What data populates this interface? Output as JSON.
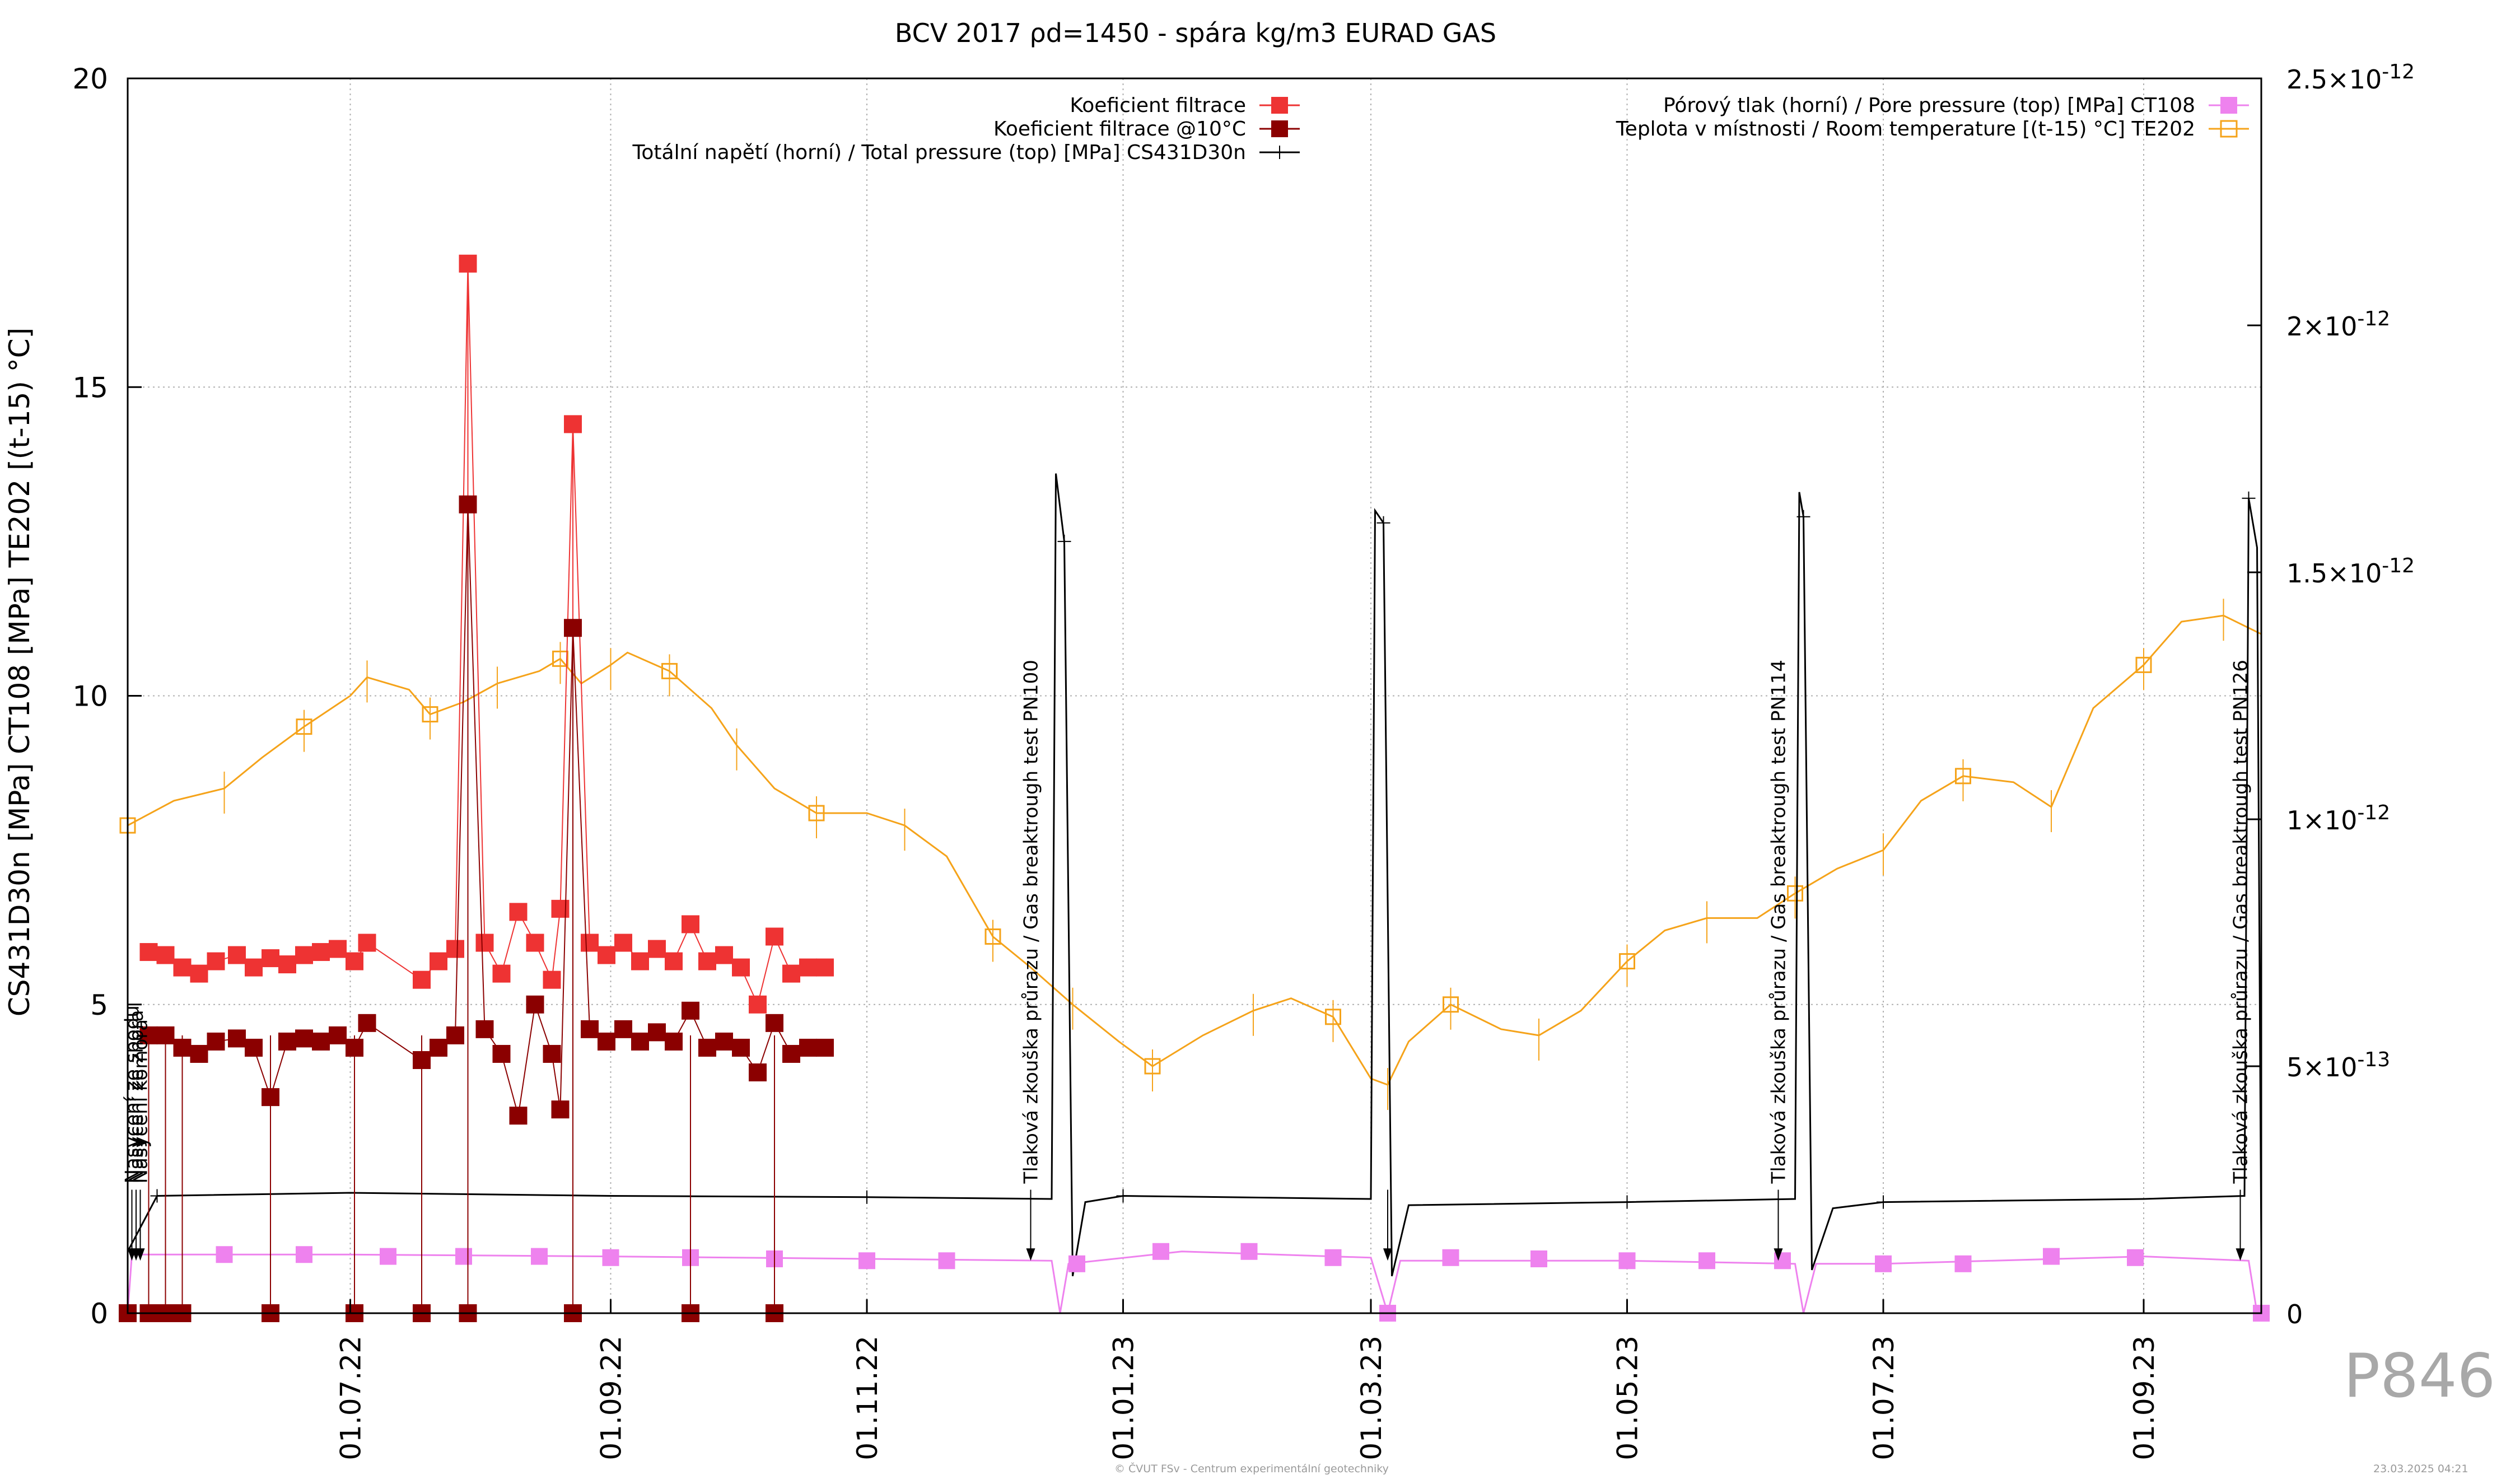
{
  "chart_data": {
    "type": "line",
    "title": "BCV 2017 ρd=1450 - spára kg/m3 EURAD GAS",
    "ylabel": "CS431D30n [MPa] CT108 [MPa] TE202 [(t-15) °C]",
    "y2label": "",
    "ylim": [
      0,
      20
    ],
    "y2lim": [
      0,
      2.5e-12
    ],
    "xlim": [
      "2022-05-09",
      "2023-09-29"
    ],
    "grid": true,
    "legend_placement": "top",
    "yticks": [
      0,
      5,
      10,
      15,
      20
    ],
    "y2ticks": [
      {
        "value": 0,
        "label": "0"
      },
      {
        "value": 5e-13,
        "label": "5×10",
        "exp": "-13"
      },
      {
        "value": 1e-12,
        "label": "1×10",
        "exp": "-12"
      },
      {
        "value": 1.5e-12,
        "label": "1.5×10",
        "exp": "-12"
      },
      {
        "value": 2e-12,
        "label": "2×10",
        "exp": "-12"
      },
      {
        "value": 2.5e-12,
        "label": "2.5×10",
        "exp": "-12"
      }
    ],
    "xticks": [
      {
        "date": "2022-07-01",
        "label": "01.07.22"
      },
      {
        "date": "2022-09-01",
        "label": "01.09.22"
      },
      {
        "date": "2022-11-01",
        "label": "01.11.22"
      },
      {
        "date": "2023-01-01",
        "label": "01.01.23"
      },
      {
        "date": "2023-03-01",
        "label": "01.03.23"
      },
      {
        "date": "2023-05-01",
        "label": "01.05.23"
      },
      {
        "date": "2023-07-01",
        "label": "01.07.23"
      },
      {
        "date": "2023-09-01",
        "label": "01.09.23"
      }
    ],
    "legend_left": [
      {
        "name": "Koeficient filtrace",
        "series": "kf"
      },
      {
        "name": "Koeficient filtrace @10°C",
        "series": "kf10"
      },
      {
        "name": "Totální napětí (horní) / Total pressure (top) [MPa] CS431D30n",
        "series": "total"
      }
    ],
    "legend_right": [
      {
        "name": "Pórový tlak (horní) / Pore pressure (top) [MPa] CT108",
        "series": "pore"
      },
      {
        "name": "Teplota v místnosti / Room temperature [(t-15) °C] TE202",
        "series": "temp"
      }
    ],
    "annotations": [
      {
        "date": "2022-05-10",
        "text": "Nasycení ze spodu"
      },
      {
        "date": "2022-05-11",
        "text": "Nasycení ze zhora"
      },
      {
        "date": "2022-05-12",
        "text": "Nasycení komora"
      },
      {
        "date": "2022-12-10",
        "text": "Tlaková zkouška průrazu / Gas breaktrough test PN100"
      },
      {
        "date": "2023-03-05",
        "text": ""
      },
      {
        "date": "2023-06-06",
        "text": "Tlaková zkouška průrazu / Gas breaktrough test PN114"
      },
      {
        "date": "2023-09-24",
        "text": "Tlaková zkouška průrazu / Gas breaktrough test PN126"
      }
    ],
    "series": {
      "temp": {
        "name": "Teplota v místnosti / Room temperature [(t-15) °C] TE202",
        "color": "#f5a31a",
        "points": [
          [
            "2022-05-09",
            7.9
          ],
          [
            "2022-05-20",
            8.3
          ],
          [
            "2022-06-01",
            8.5
          ],
          [
            "2022-06-10",
            9.0
          ],
          [
            "2022-06-20",
            9.5
          ],
          [
            "2022-07-01",
            10.0
          ],
          [
            "2022-07-05",
            10.3
          ],
          [
            "2022-07-15",
            10.1
          ],
          [
            "2022-07-20",
            9.7
          ],
          [
            "2022-07-28",
            9.9
          ],
          [
            "2022-08-05",
            10.2
          ],
          [
            "2022-08-15",
            10.4
          ],
          [
            "2022-08-20",
            10.6
          ],
          [
            "2022-08-25",
            10.2
          ],
          [
            "2022-09-01",
            10.5
          ],
          [
            "2022-09-05",
            10.7
          ],
          [
            "2022-09-15",
            10.4
          ],
          [
            "2022-09-25",
            9.8
          ],
          [
            "2022-10-01",
            9.2
          ],
          [
            "2022-10-10",
            8.5
          ],
          [
            "2022-10-20",
            8.1
          ],
          [
            "2022-11-01",
            8.1
          ],
          [
            "2022-11-10",
            7.9
          ],
          [
            "2022-11-20",
            7.4
          ],
          [
            "2022-12-01",
            6.1
          ],
          [
            "2022-12-10",
            5.6
          ],
          [
            "2022-12-20",
            5.0
          ],
          [
            "2022-12-31",
            4.4
          ],
          [
            "2023-01-08",
            4.0
          ],
          [
            "2023-01-20",
            4.5
          ],
          [
            "2023-02-01",
            4.9
          ],
          [
            "2023-02-10",
            5.1
          ],
          [
            "2023-02-20",
            4.8
          ],
          [
            "2023-03-01",
            3.8
          ],
          [
            "2023-03-05",
            3.7
          ],
          [
            "2023-03-10",
            4.4
          ],
          [
            "2023-03-20",
            5.0
          ],
          [
            "2023-04-01",
            4.6
          ],
          [
            "2023-04-10",
            4.5
          ],
          [
            "2023-04-20",
            4.9
          ],
          [
            "2023-05-01",
            5.7
          ],
          [
            "2023-05-10",
            6.2
          ],
          [
            "2023-05-20",
            6.4
          ],
          [
            "2023-06-01",
            6.4
          ],
          [
            "2023-06-10",
            6.8
          ],
          [
            "2023-06-20",
            7.2
          ],
          [
            "2023-07-01",
            7.5
          ],
          [
            "2023-07-10",
            8.3
          ],
          [
            "2023-07-20",
            8.7
          ],
          [
            "2023-08-01",
            8.6
          ],
          [
            "2023-08-10",
            8.2
          ],
          [
            "2023-08-20",
            9.8
          ],
          [
            "2023-09-01",
            10.5
          ],
          [
            "2023-09-10",
            11.2
          ],
          [
            "2023-09-20",
            11.3
          ],
          [
            "2023-09-29",
            11.0
          ]
        ]
      },
      "total": {
        "name": "Totální napětí (horní) / Total pressure (top) [MPa] CS431D30n",
        "color": "#000000",
        "points": [
          [
            "2022-05-09",
            1.0
          ],
          [
            "2022-05-16",
            1.9
          ],
          [
            "2022-07-01",
            1.95
          ],
          [
            "2022-09-01",
            1.9
          ],
          [
            "2022-11-01",
            1.88
          ],
          [
            "2022-12-15",
            1.85
          ],
          [
            "2022-12-16",
            13.6
          ],
          [
            "2022-12-18",
            12.5
          ],
          [
            "2022-12-20",
            0.6
          ],
          [
            "2022-12-23",
            1.8
          ],
          [
            "2023-01-01",
            1.9
          ],
          [
            "2023-03-01",
            1.85
          ],
          [
            "2023-03-02",
            13.0
          ],
          [
            "2023-03-04",
            12.8
          ],
          [
            "2023-03-06",
            0.6
          ],
          [
            "2023-03-10",
            1.75
          ],
          [
            "2023-05-01",
            1.8
          ],
          [
            "2023-06-10",
            1.85
          ],
          [
            "2023-06-11",
            13.3
          ],
          [
            "2023-06-12",
            12.9
          ],
          [
            "2023-06-14",
            0.7
          ],
          [
            "2023-06-19",
            1.7
          ],
          [
            "2023-07-01",
            1.8
          ],
          [
            "2023-09-01",
            1.85
          ],
          [
            "2023-09-25",
            1.9
          ],
          [
            "2023-09-26",
            13.2
          ],
          [
            "2023-09-28",
            12.4
          ],
          [
            "2023-09-29",
            1.0
          ]
        ]
      },
      "pore": {
        "name": "Pórový tlak (horní) / Pore pressure (top) [MPa] CT108",
        "color": "#ee82ee",
        "points": [
          [
            "2022-05-09",
            0.0
          ],
          [
            "2022-05-10",
            0.95
          ],
          [
            "2022-07-01",
            0.95
          ],
          [
            "2022-09-01",
            0.92
          ],
          [
            "2022-11-01",
            0.88
          ],
          [
            "2022-12-15",
            0.85
          ],
          [
            "2022-12-17",
            0.0
          ],
          [
            "2022-12-19",
            0.8
          ],
          [
            "2023-01-15",
            1.0
          ],
          [
            "2023-03-01",
            0.9
          ],
          [
            "2023-03-05",
            0.0
          ],
          [
            "2023-03-08",
            0.85
          ],
          [
            "2023-05-01",
            0.85
          ],
          [
            "2023-06-10",
            0.8
          ],
          [
            "2023-06-12",
            0.0
          ],
          [
            "2023-06-15",
            0.8
          ],
          [
            "2023-07-01",
            0.8
          ],
          [
            "2023-09-01",
            0.92
          ],
          [
            "2023-09-26",
            0.85
          ],
          [
            "2023-09-28",
            0.0
          ]
        ],
        "markers": [
          [
            "2022-05-09",
            0.0
          ],
          [
            "2022-06-01",
            0.95
          ],
          [
            "2022-06-20",
            0.95
          ],
          [
            "2022-07-10",
            0.92
          ],
          [
            "2022-07-28",
            0.92
          ],
          [
            "2022-08-15",
            0.92
          ],
          [
            "2022-09-01",
            0.9
          ],
          [
            "2022-09-20",
            0.9
          ],
          [
            "2022-10-10",
            0.88
          ],
          [
            "2022-11-01",
            0.85
          ],
          [
            "2022-11-20",
            0.85
          ],
          [
            "2022-12-21",
            0.8
          ],
          [
            "2023-01-10",
            1.0
          ],
          [
            "2023-01-31",
            1.0
          ],
          [
            "2023-02-20",
            0.9
          ],
          [
            "2023-03-05",
            0.0
          ],
          [
            "2023-03-20",
            0.9
          ],
          [
            "2023-04-10",
            0.88
          ],
          [
            "2023-05-01",
            0.85
          ],
          [
            "2023-05-20",
            0.85
          ],
          [
            "2023-06-07",
            0.85
          ],
          [
            "2023-07-01",
            0.8
          ],
          [
            "2023-07-20",
            0.8
          ],
          [
            "2023-08-10",
            0.92
          ],
          [
            "2023-08-30",
            0.9
          ],
          [
            "2023-09-29",
            0.0
          ]
        ]
      },
      "kf": {
        "name": "Koeficient filtrace",
        "color": "#ee3333",
        "points": [
          [
            "2022-05-14",
            5.85
          ],
          [
            "2022-05-18",
            5.8
          ],
          [
            "2022-05-22",
            5.6
          ],
          [
            "2022-05-26",
            5.5
          ],
          [
            "2022-05-30",
            5.7
          ],
          [
            "2022-06-04",
            5.8
          ],
          [
            "2022-06-08",
            5.6
          ],
          [
            "2022-06-12",
            5.75
          ],
          [
            "2022-06-16",
            5.65
          ],
          [
            "2022-06-20",
            5.8
          ],
          [
            "2022-06-24",
            5.85
          ],
          [
            "2022-06-28",
            5.9
          ],
          [
            "2022-07-02",
            5.7
          ],
          [
            "2022-07-05",
            6.0
          ],
          [
            "2022-07-18",
            5.4
          ],
          [
            "2022-07-22",
            5.7
          ],
          [
            "2022-07-26",
            5.9
          ],
          [
            "2022-07-29",
            17.0
          ],
          [
            "2022-08-02",
            6.0
          ],
          [
            "2022-08-06",
            5.5
          ],
          [
            "2022-08-10",
            6.5
          ],
          [
            "2022-08-14",
            6.0
          ],
          [
            "2022-08-18",
            5.4
          ],
          [
            "2022-08-20",
            6.55
          ],
          [
            "2022-08-23",
            14.4
          ],
          [
            "2022-08-27",
            6.0
          ],
          [
            "2022-08-31",
            5.8
          ],
          [
            "2022-09-04",
            6.0
          ],
          [
            "2022-09-08",
            5.7
          ],
          [
            "2022-09-12",
            5.9
          ],
          [
            "2022-09-16",
            5.7
          ],
          [
            "2022-09-20",
            6.3
          ],
          [
            "2022-09-24",
            5.7
          ],
          [
            "2022-09-28",
            5.8
          ],
          [
            "2022-10-02",
            5.6
          ],
          [
            "2022-10-06",
            5.0
          ],
          [
            "2022-10-10",
            6.1
          ],
          [
            "2022-10-14",
            5.5
          ],
          [
            "2022-10-18",
            5.6
          ],
          [
            "2022-10-22",
            5.6
          ]
        ]
      },
      "kf10": {
        "name": "Koeficient filtrace @10°C",
        "color": "#8b0000",
        "points": [
          [
            "2022-05-14",
            4.5
          ],
          [
            "2022-05-18",
            4.5
          ],
          [
            "2022-05-22",
            4.3
          ],
          [
            "2022-05-26",
            4.2
          ],
          [
            "2022-05-30",
            4.4
          ],
          [
            "2022-06-04",
            4.45
          ],
          [
            "2022-06-08",
            4.3
          ],
          [
            "2022-06-12",
            3.5
          ],
          [
            "2022-06-16",
            4.4
          ],
          [
            "2022-06-20",
            4.45
          ],
          [
            "2022-06-24",
            4.4
          ],
          [
            "2022-06-28",
            4.5
          ],
          [
            "2022-07-02",
            4.3
          ],
          [
            "2022-07-05",
            4.7
          ],
          [
            "2022-07-18",
            4.1
          ],
          [
            "2022-07-22",
            4.3
          ],
          [
            "2022-07-26",
            4.5
          ],
          [
            "2022-07-29",
            13.1
          ],
          [
            "2022-08-02",
            4.6
          ],
          [
            "2022-08-06",
            4.2
          ],
          [
            "2022-08-10",
            3.2
          ],
          [
            "2022-08-14",
            5.0
          ],
          [
            "2022-08-18",
            4.2
          ],
          [
            "2022-08-20",
            3.3
          ],
          [
            "2022-08-23",
            11.1
          ],
          [
            "2022-08-27",
            4.6
          ],
          [
            "2022-08-31",
            4.4
          ],
          [
            "2022-09-04",
            4.6
          ],
          [
            "2022-09-08",
            4.4
          ],
          [
            "2022-09-12",
            4.55
          ],
          [
            "2022-09-16",
            4.4
          ],
          [
            "2022-09-20",
            4.9
          ],
          [
            "2022-09-24",
            4.3
          ],
          [
            "2022-09-28",
            4.4
          ],
          [
            "2022-10-02",
            4.3
          ],
          [
            "2022-10-06",
            3.9
          ],
          [
            "2022-10-10",
            4.7
          ],
          [
            "2022-10-14",
            4.2
          ],
          [
            "2022-10-18",
            4.3
          ],
          [
            "2022-10-22",
            4.3
          ]
        ],
        "zero_markers": [
          "2022-05-09",
          "2022-05-14",
          "2022-05-18",
          "2022-05-22",
          "2022-06-12",
          "2022-07-02",
          "2022-07-18",
          "2022-07-29",
          "2022-08-23",
          "2022-09-20",
          "2022-10-10"
        ]
      }
    }
  },
  "footer": {
    "chart_code": "P846",
    "copyright": "© ČVUT FSv - Centrum experimentální geotechniky",
    "timestamp": "23.03.2025 04:21"
  }
}
